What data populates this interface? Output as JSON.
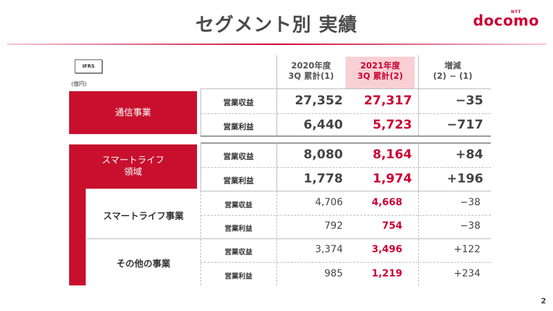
{
  "title": "セグメント別 実績",
  "logo": {
    "ntt": "NTT",
    "text": "docomo"
  },
  "ifrs": "IFRS",
  "unit": "(億円)",
  "headers": {
    "col2020": {
      "line1": "2020年度",
      "line2": "3Q 累計(1)"
    },
    "col2021": {
      "line1": "2021年度",
      "line2": "3Q 累計(2)"
    },
    "diff": {
      "line1": "増減",
      "line2": "(2) − (1)"
    }
  },
  "segments": {
    "telecom": {
      "label": "通信事業",
      "rows": [
        {
          "item": "営業収益",
          "v2020": "27,352",
          "v2021": "27,317",
          "diff": "−35"
        },
        {
          "item": "営業利益",
          "v2020": "6,440",
          "v2021": "5,723",
          "diff": "−717"
        }
      ]
    },
    "smartlife": {
      "label_line1": "スマートライフ",
      "label_line2": "領域",
      "rows": [
        {
          "item": "営業収益",
          "v2020": "8,080",
          "v2021": "8,164",
          "diff": "+84"
        },
        {
          "item": "営業利益",
          "v2020": "1,778",
          "v2021": "1,974",
          "diff": "+196"
        }
      ]
    },
    "smartlife_business": {
      "label": "スマートライフ事業",
      "rows": [
        {
          "item": "営業収益",
          "v2020": "4,706",
          "v2021": "4,668",
          "diff": "−38"
        },
        {
          "item": "営業利益",
          "v2020": "792",
          "v2021": "754",
          "diff": "−38"
        }
      ]
    },
    "other": {
      "label": "その他の事業",
      "rows": [
        {
          "item": "営業収益",
          "v2020": "3,374",
          "v2021": "3,496",
          "diff": "+122"
        },
        {
          "item": "営業利益",
          "v2020": "985",
          "v2021": "1,219",
          "diff": "+234"
        }
      ]
    }
  },
  "page_number": "2",
  "colors": {
    "brand": "#cc0033",
    "segment_fill": "#c8102e",
    "highlight": "#f8d0d4"
  }
}
